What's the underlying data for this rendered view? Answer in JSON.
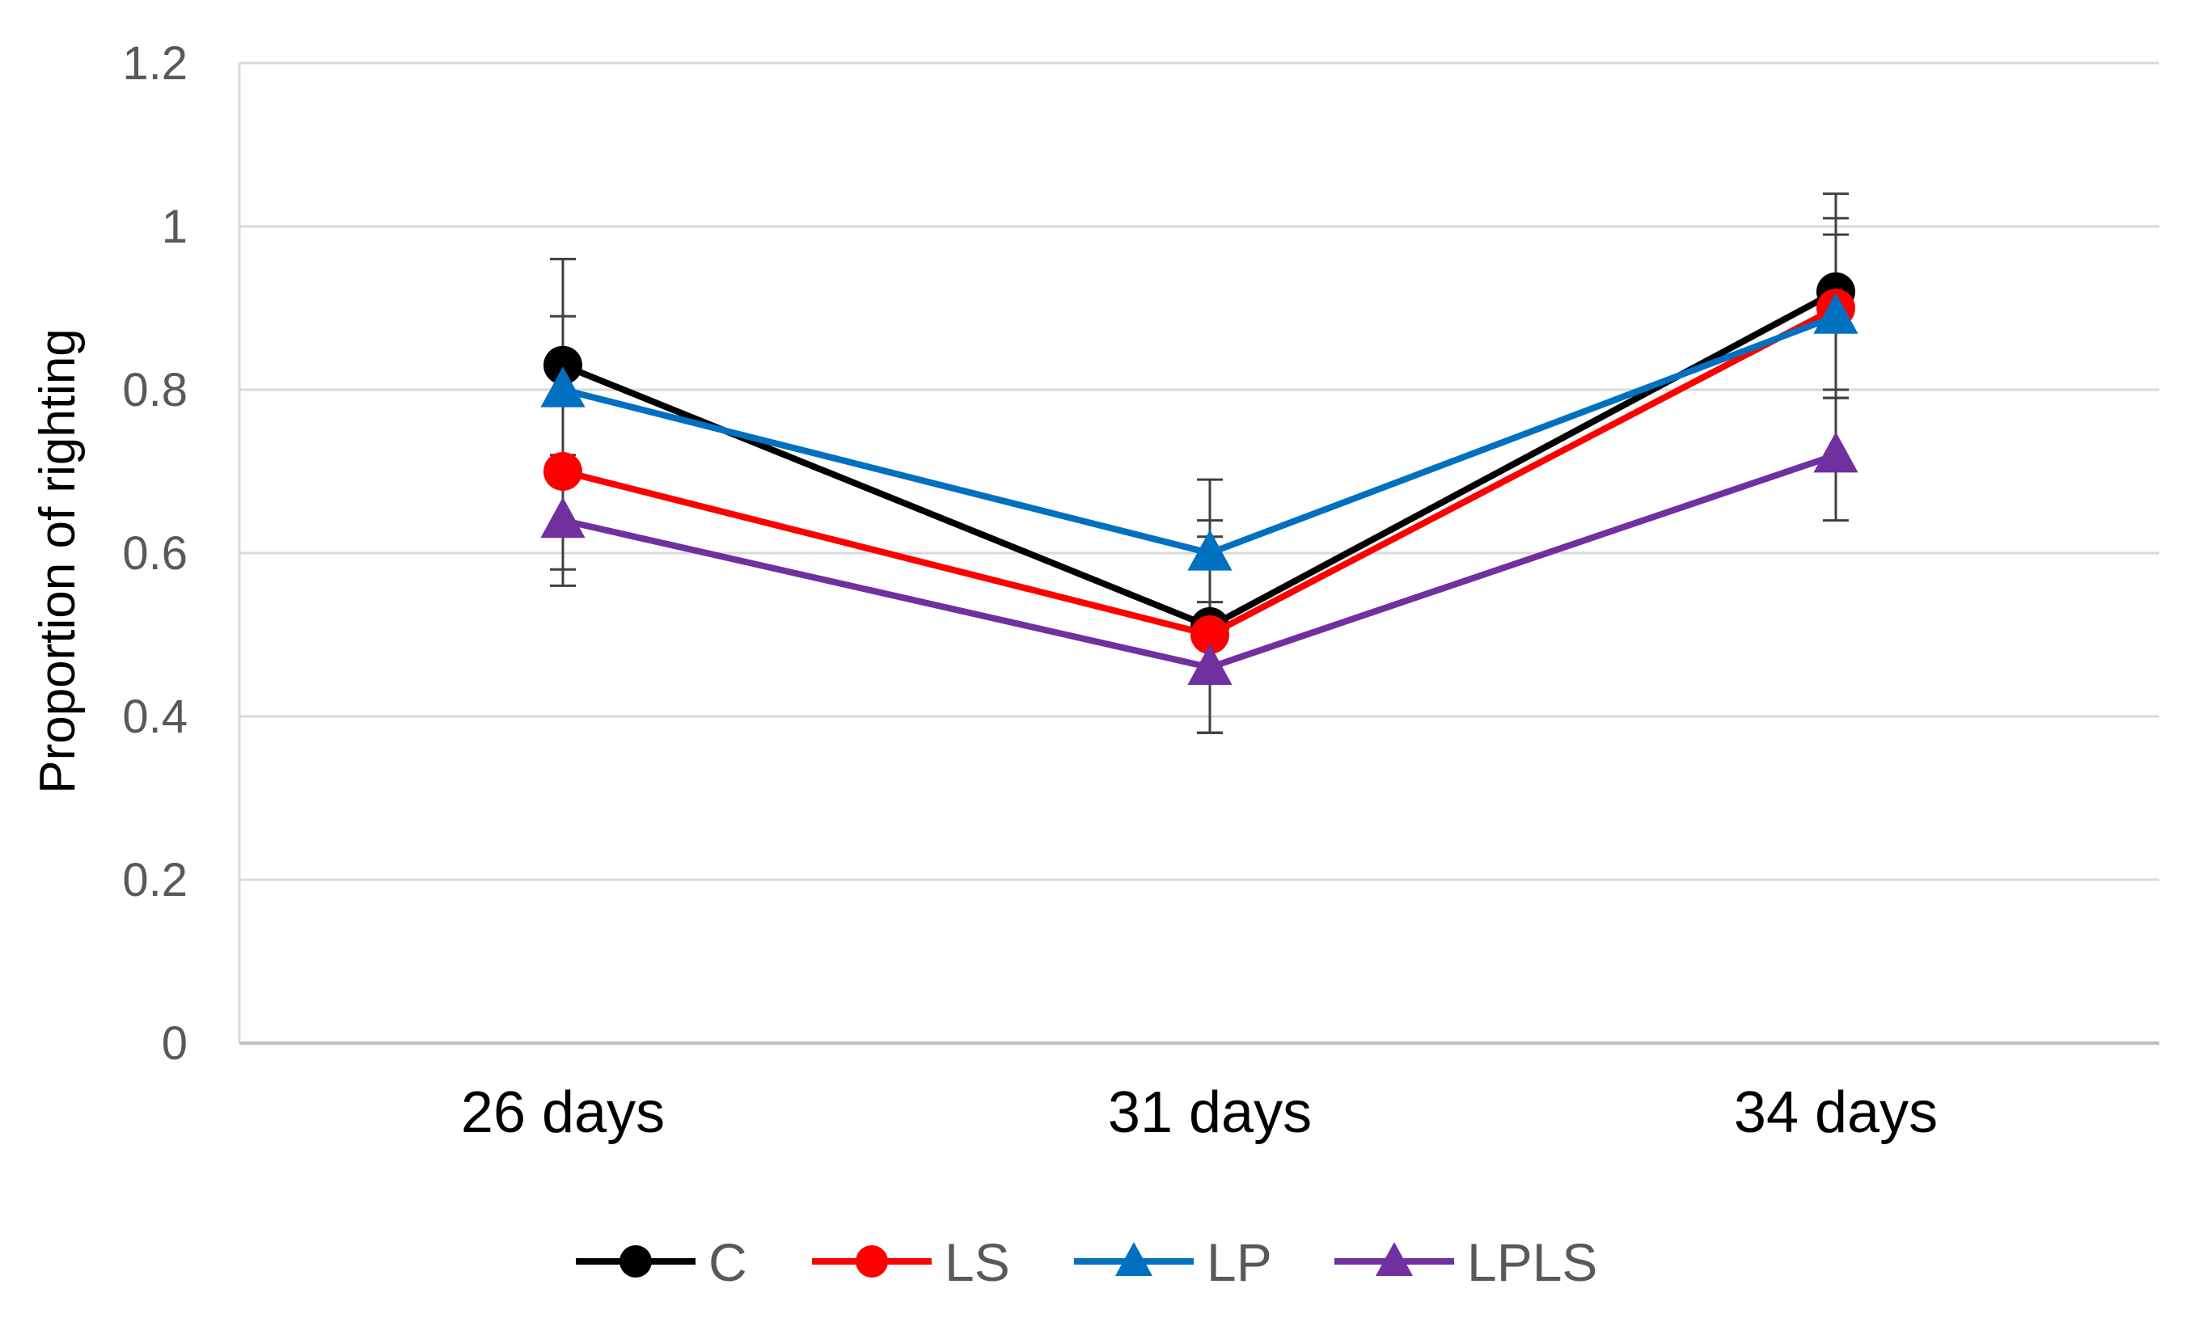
{
  "chart_data": {
    "type": "line",
    "title": "",
    "xlabel": "",
    "ylabel": "Proportion of righting",
    "categories": [
      "26 days",
      "31 days",
      "34 days"
    ],
    "ylim": [
      0,
      1.2
    ],
    "yticks": [
      0,
      0.2,
      0.4,
      0.6,
      0.8,
      1,
      1.2
    ],
    "ytick_labels": [
      "0",
      "0.2",
      "0.4",
      "0.6",
      "0.8",
      "1",
      "1.2"
    ],
    "grid": true,
    "legend_position": "bottom",
    "series": [
      {
        "name": "C",
        "color": "#000000",
        "marker": "circle",
        "values": [
          0.83,
          0.51,
          0.92
        ],
        "errors": [
          0.13,
          0.13,
          0.12
        ]
      },
      {
        "name": "LS",
        "color": "#ff0000",
        "marker": "circle",
        "values": [
          0.7,
          0.5,
          0.9
        ],
        "errors": [
          0.12,
          0.12,
          0.11
        ]
      },
      {
        "name": "LP",
        "color": "#0070c0",
        "marker": "triangle",
        "values": [
          0.8,
          0.6,
          0.89
        ],
        "errors": [
          0.09,
          0.09,
          0.1
        ]
      },
      {
        "name": "LPLS",
        "color": "#7030a0",
        "marker": "triangle",
        "values": [
          0.64,
          0.46,
          0.72
        ],
        "errors": [
          0.08,
          0.08,
          0.08
        ]
      }
    ]
  }
}
